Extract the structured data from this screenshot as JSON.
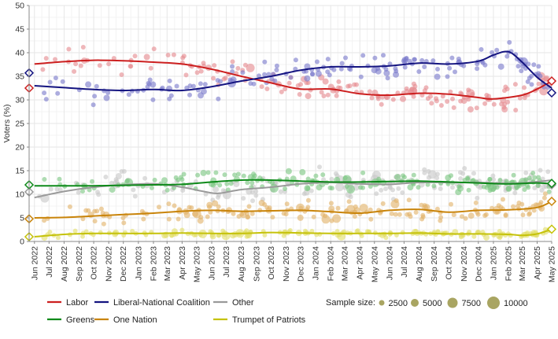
{
  "chart_data": {
    "type": "scatter",
    "title": "",
    "ylabel": "Voters (%)",
    "xlabel": "",
    "ylim": [
      0,
      50
    ],
    "yticks": [
      0,
      5,
      10,
      15,
      20,
      25,
      30,
      35,
      40,
      45,
      50
    ],
    "xlim": [
      "2022-05-21",
      "2025-05-01"
    ],
    "xticks": [
      "2022-06-01",
      "2022-07-01",
      "2022-08-01",
      "2022-09-01",
      "2022-10-01",
      "2022-11-01",
      "2022-12-01",
      "2023-01-01",
      "2023-02-01",
      "2023-03-01",
      "2023-04-01",
      "2023-05-01",
      "2023-06-01",
      "2023-07-01",
      "2023-08-01",
      "2023-09-01",
      "2023-10-01",
      "2023-11-01",
      "2023-12-01",
      "2024-01-01",
      "2024-02-01",
      "2024-03-01",
      "2024-04-01",
      "2024-05-01",
      "2024-06-01",
      "2024-07-01",
      "2024-08-01",
      "2024-09-01",
      "2024-10-01",
      "2024-11-01",
      "2024-12-01",
      "2025-01-01",
      "2025-02-01",
      "2025-03-01",
      "2025-04-01",
      "2025-05-01"
    ],
    "xtick_labels": [
      "Jun 2022",
      "Jul 2022",
      "Aug 2022",
      "Sep 2022",
      "Oct 2022",
      "Nov 2022",
      "Dec 2022",
      "Jan 2023",
      "Feb 2023",
      "Mar 2023",
      "Apr 2023",
      "May 2023",
      "Jun 2023",
      "Jul 2023",
      "Aug 2023",
      "Sep 2023",
      "Oct 2023",
      "Nov 2023",
      "Dec 2023",
      "Jan 2024",
      "Feb 2024",
      "Mar 2024",
      "Apr 2024",
      "May 2024",
      "Jun 2024",
      "Jul 2024",
      "Aug 2024",
      "Sep 2024",
      "Oct 2024",
      "Nov 2024",
      "Dec 2024",
      "Jan 2025",
      "Feb 2025",
      "Mar 2025",
      "Apr 2025",
      "May 2025"
    ],
    "grid": true,
    "legend_position": "bottom",
    "series": [
      {
        "name": "Labor",
        "color": "#cc1f1f",
        "point_color": "#e58a90",
        "spread": 2.2,
        "trend": [
          [
            "2022-06-01",
            37.6
          ],
          [
            "2022-08-01",
            38.1
          ],
          [
            "2022-10-01",
            38.4
          ],
          [
            "2022-12-01",
            38.3
          ],
          [
            "2023-02-01",
            38.0
          ],
          [
            "2023-04-01",
            37.6
          ],
          [
            "2023-06-01",
            36.5
          ],
          [
            "2023-08-01",
            35.0
          ],
          [
            "2023-10-01",
            33.6
          ],
          [
            "2023-12-01",
            32.3
          ],
          [
            "2024-02-01",
            32.3
          ],
          [
            "2024-04-01",
            31.3
          ],
          [
            "2024-06-01",
            31.0
          ],
          [
            "2024-08-01",
            31.4
          ],
          [
            "2024-10-01",
            31.2
          ],
          [
            "2024-12-01",
            30.5
          ],
          [
            "2025-01-01",
            30.2
          ],
          [
            "2025-03-01",
            31.0
          ],
          [
            "2025-04-01",
            32.3
          ],
          [
            "2025-05-01",
            34.0
          ]
        ],
        "start_marker": 32.5,
        "end_marker": 34.0
      },
      {
        "name": "Liberal-National Coalition",
        "color": "#141480",
        "point_color": "#7b7bcc",
        "spread": 2.2,
        "trend": [
          [
            "2022-06-01",
            33.0
          ],
          [
            "2022-08-01",
            32.6
          ],
          [
            "2022-10-01",
            32.2
          ],
          [
            "2022-12-01",
            32.0
          ],
          [
            "2023-02-01",
            32.2
          ],
          [
            "2023-04-01",
            32.0
          ],
          [
            "2023-06-01",
            32.8
          ],
          [
            "2023-08-01",
            34.0
          ],
          [
            "2023-10-01",
            35.0
          ],
          [
            "2023-12-01",
            36.3
          ],
          [
            "2024-02-01",
            37.0
          ],
          [
            "2024-04-01",
            37.0
          ],
          [
            "2024-06-01",
            37.2
          ],
          [
            "2024-08-01",
            37.8
          ],
          [
            "2024-10-01",
            37.6
          ],
          [
            "2024-12-01",
            38.2
          ],
          [
            "2025-01-01",
            39.5
          ],
          [
            "2025-02-01",
            40.2
          ],
          [
            "2025-03-01",
            38.0
          ],
          [
            "2025-04-01",
            34.8
          ],
          [
            "2025-05-01",
            32.5
          ]
        ],
        "start_marker": 35.7,
        "end_marker": 31.5
      },
      {
        "name": "Other",
        "color": "#9a9a9a",
        "point_color": "#c8c8c8",
        "spread": 2.2,
        "trend": [
          [
            "2022-06-01",
            9.3
          ],
          [
            "2022-08-01",
            10.6
          ],
          [
            "2022-10-01",
            11.5
          ],
          [
            "2022-12-01",
            12.0
          ],
          [
            "2023-02-01",
            12.2
          ],
          [
            "2023-04-01",
            11.5
          ],
          [
            "2023-05-15",
            10.6
          ],
          [
            "2023-06-15",
            10.2
          ],
          [
            "2023-08-01",
            11.0
          ],
          [
            "2023-10-01",
            11.5
          ],
          [
            "2023-12-01",
            12.2
          ],
          [
            "2024-02-01",
            12.5
          ],
          [
            "2024-04-01",
            12.2
          ],
          [
            "2024-06-01",
            12.1
          ],
          [
            "2024-08-01",
            12.5
          ],
          [
            "2024-10-01",
            12.5
          ],
          [
            "2024-12-01",
            12.5
          ],
          [
            "2025-02-01",
            12.3
          ],
          [
            "2025-03-15",
            12.5
          ],
          [
            "2025-05-01",
            13.0
          ]
        ],
        "start_marker": 10.5,
        "end_marker": 12.0
      },
      {
        "name": "Greens",
        "color": "#0e8a1a",
        "point_color": "#7cc783",
        "spread": 1.6,
        "trend": [
          [
            "2022-06-01",
            11.8
          ],
          [
            "2022-08-01",
            11.8
          ],
          [
            "2022-10-01",
            11.8
          ],
          [
            "2022-12-01",
            11.9
          ],
          [
            "2023-02-01",
            12.0
          ],
          [
            "2023-04-01",
            12.1
          ],
          [
            "2023-06-01",
            12.6
          ],
          [
            "2023-08-01",
            13.0
          ],
          [
            "2023-10-01",
            13.0
          ],
          [
            "2023-12-01",
            12.8
          ],
          [
            "2024-02-01",
            12.6
          ],
          [
            "2024-04-01",
            12.6
          ],
          [
            "2024-06-01",
            12.7
          ],
          [
            "2024-08-01",
            12.8
          ],
          [
            "2024-10-01",
            12.6
          ],
          [
            "2024-12-01",
            12.4
          ],
          [
            "2025-02-01",
            12.2
          ],
          [
            "2025-04-01",
            12.4
          ],
          [
            "2025-05-01",
            12.2
          ]
        ],
        "start_marker": 12.0,
        "end_marker": 12.3
      },
      {
        "name": "One Nation",
        "color": "#c9840a",
        "point_color": "#e2b36a",
        "spread": 1.5,
        "trend": [
          [
            "2022-06-01",
            5.0
          ],
          [
            "2022-08-01",
            5.1
          ],
          [
            "2022-10-01",
            5.4
          ],
          [
            "2022-12-01",
            5.7
          ],
          [
            "2023-02-01",
            6.0
          ],
          [
            "2023-04-01",
            6.4
          ],
          [
            "2023-06-01",
            6.6
          ],
          [
            "2023-08-01",
            6.4
          ],
          [
            "2023-10-01",
            6.5
          ],
          [
            "2023-12-01",
            6.6
          ],
          [
            "2024-02-01",
            6.3
          ],
          [
            "2024-04-01",
            6.0
          ],
          [
            "2024-06-01",
            6.6
          ],
          [
            "2024-08-01",
            6.8
          ],
          [
            "2024-10-01",
            6.2
          ],
          [
            "2024-12-01",
            6.6
          ],
          [
            "2025-02-01",
            6.7
          ],
          [
            "2025-04-01",
            7.2
          ],
          [
            "2025-05-01",
            8.5
          ]
        ],
        "start_marker": 4.8,
        "end_marker": 8.5
      },
      {
        "name": "Trumpet of Patriots",
        "color": "#c5c20a",
        "point_color": "#e2de6c",
        "spread": 0.6,
        "trend": [
          [
            "2022-06-01",
            1.0
          ],
          [
            "2022-08-01",
            1.5
          ],
          [
            "2022-10-01",
            1.7
          ],
          [
            "2022-12-01",
            1.7
          ],
          [
            "2023-02-01",
            1.7
          ],
          [
            "2023-04-01",
            1.8
          ],
          [
            "2023-06-01",
            1.7
          ],
          [
            "2023-08-01",
            1.7
          ],
          [
            "2023-10-01",
            1.9
          ],
          [
            "2023-12-01",
            1.8
          ],
          [
            "2024-02-01",
            1.7
          ],
          [
            "2024-04-01",
            1.7
          ],
          [
            "2024-06-01",
            1.7
          ],
          [
            "2024-08-01",
            1.8
          ],
          [
            "2024-10-01",
            1.6
          ],
          [
            "2024-12-01",
            1.6
          ],
          [
            "2025-02-01",
            1.5
          ],
          [
            "2025-03-01",
            1.3
          ],
          [
            "2025-04-01",
            1.6
          ],
          [
            "2025-05-01",
            2.6
          ]
        ],
        "start_marker": 1.0,
        "end_marker": 2.6
      }
    ],
    "size_legend": {
      "title": "Sample size:",
      "values": [
        2500,
        5000,
        7500,
        10000
      ],
      "labels": [
        "2500",
        "5000",
        "7500",
        "10000"
      ],
      "color": "#a9a562"
    }
  }
}
